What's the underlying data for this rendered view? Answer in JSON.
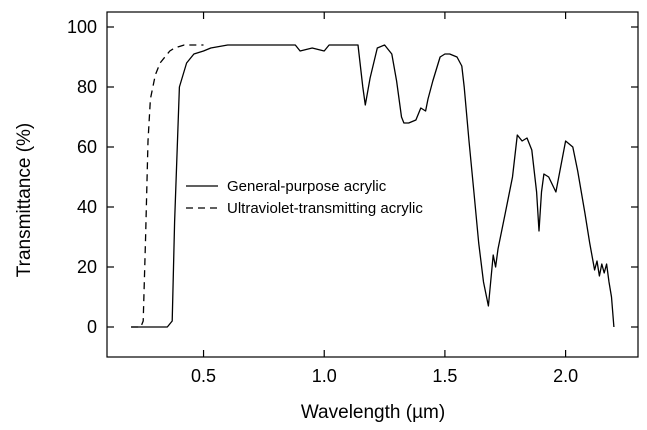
{
  "chart_data": {
    "type": "line",
    "title": "",
    "xlabel": "Wavelength (µm)",
    "ylabel": "Transmittance (%)",
    "xlim": [
      0.1,
      2.3
    ],
    "ylim": [
      -10,
      105
    ],
    "xticks": [
      0.5,
      1.0,
      1.5,
      2.0
    ],
    "xtick_labels": [
      "0.5",
      "1.0",
      "1.5",
      "2.0"
    ],
    "yticks": [
      0,
      20,
      40,
      60,
      80,
      100
    ],
    "ytick_labels": [
      "0",
      "20",
      "40",
      "60",
      "80",
      "100"
    ],
    "grid": false,
    "legend_position": "center-left",
    "series": [
      {
        "name": "General-purpose acrylic",
        "style": "solid",
        "color": "#000000",
        "x": [
          0.2,
          0.3,
          0.35,
          0.37,
          0.38,
          0.4,
          0.43,
          0.46,
          0.5,
          0.53,
          0.6,
          0.7,
          0.8,
          0.85,
          0.88,
          0.9,
          0.95,
          1.0,
          1.02,
          1.05,
          1.08,
          1.1,
          1.12,
          1.14,
          1.16,
          1.17,
          1.19,
          1.22,
          1.25,
          1.28,
          1.3,
          1.32,
          1.33,
          1.35,
          1.38,
          1.4,
          1.42,
          1.43,
          1.45,
          1.48,
          1.5,
          1.52,
          1.55,
          1.57,
          1.58,
          1.6,
          1.62,
          1.64,
          1.66,
          1.68,
          1.7,
          1.71,
          1.72,
          1.75,
          1.78,
          1.8,
          1.82,
          1.84,
          1.86,
          1.88,
          1.89,
          1.9,
          1.91,
          1.93,
          1.96,
          2.0,
          2.03,
          2.05,
          2.08,
          2.1,
          2.12,
          2.13,
          2.14,
          2.15,
          2.16,
          2.17,
          2.18,
          2.19,
          2.2
        ],
        "y": [
          0,
          0,
          0,
          2,
          35,
          80,
          88,
          91,
          92,
          93,
          94,
          94,
          94,
          94,
          94,
          92,
          93,
          92,
          94,
          94,
          94,
          94,
          94,
          94,
          80,
          74,
          83,
          93,
          94,
          91,
          82,
          70,
          68,
          68,
          69,
          73,
          72,
          76,
          82,
          90,
          91,
          91,
          90,
          87,
          80,
          62,
          45,
          28,
          15,
          7,
          24,
          20,
          26,
          38,
          50,
          64,
          62,
          63,
          59,
          45,
          32,
          45,
          51,
          50,
          45,
          62,
          60,
          52,
          38,
          28,
          19,
          22,
          17,
          21,
          18,
          21,
          15,
          10,
          0
        ]
      },
      {
        "name": "Ultraviolet-transmitting acrylic",
        "style": "dashed",
        "color": "#000000",
        "x": [
          0.2,
          0.24,
          0.25,
          0.26,
          0.27,
          0.28,
          0.3,
          0.32,
          0.34,
          0.36,
          0.38,
          0.4,
          0.42,
          0.45,
          0.5
        ],
        "y": [
          0,
          0,
          2,
          30,
          62,
          76,
          84,
          88,
          90,
          92,
          93,
          93.5,
          94,
          94,
          94
        ]
      }
    ]
  }
}
